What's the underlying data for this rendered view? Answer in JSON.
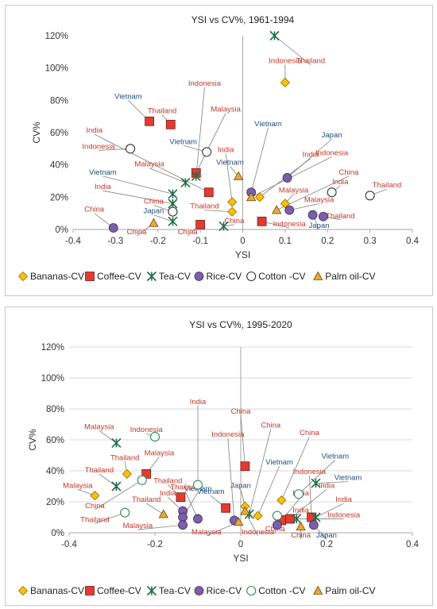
{
  "chart_data": [
    {
      "type": "scatter",
      "title": "YSI vs CV%, 1961-1994",
      "xlabel": "YSI",
      "ylabel": "CV%",
      "xlim": [
        -0.4,
        0.4
      ],
      "ylim": [
        0,
        120
      ],
      "x_ticks": [
        "-0.4",
        "-0.3",
        "-0.2",
        "-0.1",
        "0",
        "0.1",
        "0.2",
        "0.3",
        "0.4"
      ],
      "y_ticks": [
        "0%",
        "20%",
        "40%",
        "60%",
        "80%",
        "100%",
        "120%"
      ],
      "grid": false,
      "legend_position": "bottom",
      "series": [
        {
          "name": "Bananas-CV",
          "marker": "diamond",
          "color": "#ffc000",
          "points": [
            {
              "x": 0.1,
              "y": 91,
              "label": "Indonesia",
              "lx": 0.1,
              "ly": 102
            },
            {
              "x": 0.04,
              "y": 20,
              "label": "India",
              "lx": 0.16,
              "ly": 44
            },
            {
              "x": 0.1,
              "y": 16,
              "label": "Malaysia",
              "lx": 0.12,
              "ly": 22
            },
            {
              "x": -0.025,
              "y": 17,
              "label": "India",
              "lx": -0.04,
              "ly": 47
            },
            {
              "x": -0.025,
              "y": 11,
              "label": "Thailand",
              "lx": -0.09,
              "ly": 12
            }
          ]
        },
        {
          "name": "Coffee-CV",
          "marker": "square",
          "color": "#e03c31",
          "points": [
            {
              "x": -0.22,
              "y": 67,
              "label": "Vietnam",
              "lx": -0.27,
              "ly": 80
            },
            {
              "x": -0.17,
              "y": 65,
              "label": "Thailand",
              "lx": -0.19,
              "ly": 71
            },
            {
              "x": -0.11,
              "y": 35,
              "label": "Malaysia",
              "lx": -0.04,
              "ly": 72
            },
            {
              "x": -0.08,
              "y": 23,
              "label": "India",
              "lx": -0.35,
              "ly": 59
            },
            {
              "x": -0.1,
              "y": 3,
              "label": "China",
              "lx": -0.13,
              "ly": -4
            },
            {
              "x": 0.045,
              "y": 5,
              "label": "Indonesia",
              "lx": 0.11,
              "ly": 1
            }
          ]
        },
        {
          "name": "Tea-CV",
          "marker": "star",
          "color": "#1f6e43",
          "points": [
            {
              "x": 0.075,
              "y": 120,
              "label": "Thailand",
              "lx": 0.16,
              "ly": 102
            },
            {
              "x": -0.11,
              "y": 33,
              "label": "Indonesia",
              "lx": -0.09,
              "ly": 88
            },
            {
              "x": -0.135,
              "y": 29,
              "label": "Malaysia",
              "lx": -0.22,
              "ly": 38
            },
            {
              "x": -0.165,
              "y": 22,
              "label": "Vietnam",
              "lx": -0.33,
              "ly": 33
            },
            {
              "x": -0.165,
              "y": 16,
              "label": "India",
              "lx": -0.33,
              "ly": 24
            },
            {
              "x": -0.165,
              "y": 5,
              "label": "Japan",
              "lx": -0.21,
              "ly": 9
            },
            {
              "x": -0.045,
              "y": 2,
              "label": "China",
              "lx": -0.02,
              "ly": 3
            }
          ]
        },
        {
          "name": "Rice-CV",
          "marker": "circle",
          "color": "#7b5fa8",
          "points": [
            {
              "x": 0.02,
              "y": 23,
              "label": "Vietnam",
              "lx": 0.06,
              "ly": 63
            },
            {
              "x": 0.105,
              "y": 32,
              "label": "Japan",
              "lx": 0.21,
              "ly": 56
            },
            {
              "x": 0.11,
              "y": 12,
              "label": "Malaysia",
              "lx": 0.18,
              "ly": 16
            },
            {
              "x": 0.165,
              "y": 9,
              "label": "Japan",
              "lx": 0.18,
              "ly": 0
            },
            {
              "x": 0.19,
              "y": 8,
              "label": "Thailand",
              "lx": 0.23,
              "ly": 6
            },
            {
              "x": -0.305,
              "y": 1,
              "label": "China",
              "lx": -0.35,
              "ly": 10
            }
          ]
        },
        {
          "name": "Cotton -CV",
          "marker": "ring",
          "color": "#333333",
          "points": [
            {
              "x": -0.265,
              "y": 50,
              "label": "Indonesia",
              "lx": -0.34,
              "ly": 49
            },
            {
              "x": -0.085,
              "y": 48,
              "label": "Vietnam",
              "lx": -0.14,
              "ly": 52
            },
            {
              "x": -0.165,
              "y": 11,
              "label": "China",
              "lx": -0.21,
              "ly": 15
            },
            {
              "x": 0.21,
              "y": 23,
              "label": "India",
              "lx": 0.23,
              "ly": 27
            },
            {
              "x": 0.3,
              "y": 21,
              "label": "Thailand",
              "lx": 0.34,
              "ly": 25
            }
          ]
        },
        {
          "name": "Palm oil-CV",
          "marker": "triangle",
          "color": "#e6a83a",
          "points": [
            {
              "x": -0.01,
              "y": 33,
              "label": "Vietnam",
              "lx": -0.03,
              "ly": 39
            },
            {
              "x": 0.02,
              "y": 20,
              "label": "Indonesia",
              "lx": 0.21,
              "ly": 45
            },
            {
              "x": 0.08,
              "y": 12,
              "label": "China",
              "lx": 0.25,
              "ly": 33
            },
            {
              "x": -0.21,
              "y": 4,
              "label": "China",
              "lx": -0.25,
              "ly": -4
            }
          ]
        }
      ]
    },
    {
      "type": "scatter",
      "title": "YSI vs CV%, 1995-2020",
      "xlabel": "YSI",
      "ylabel": "CV%",
      "xlim": [
        -0.4,
        0.4
      ],
      "ylim": [
        0,
        120
      ],
      "x_ticks": [
        "-0.4",
        "-0.2",
        "0",
        "0.2",
        "0.4"
      ],
      "y_ticks": [
        "0%",
        "20%",
        "40%",
        "60%",
        "80%",
        "100%",
        "120%"
      ],
      "grid": true,
      "legend_position": "bottom",
      "series": [
        {
          "name": "Bananas-CV",
          "marker": "diamond",
          "color": "#ffc000",
          "points": [
            {
              "x": -0.34,
              "y": 24,
              "label": "Malaysia",
              "lx": -0.38,
              "ly": 28
            },
            {
              "x": -0.265,
              "y": 38,
              "label": "Thailand",
              "lx": -0.27,
              "ly": 46
            },
            {
              "x": 0.01,
              "y": 17,
              "label": "Japan",
              "lx": 0.0,
              "ly": 28
            },
            {
              "x": 0.04,
              "y": 11,
              "label": "Vietnam",
              "lx": 0.09,
              "ly": 43
            },
            {
              "x": 0.095,
              "y": 21,
              "label": "China",
              "lx": 0.16,
              "ly": 62
            }
          ]
        },
        {
          "name": "Coffee-CV",
          "marker": "square",
          "color": "#e03c31",
          "points": [
            {
              "x": -0.22,
              "y": 38,
              "label": "Malaysia",
              "lx": -0.19,
              "ly": 49
            },
            {
              "x": -0.14,
              "y": 23,
              "label": "Thailand",
              "lx": -0.17,
              "ly": 31
            },
            {
              "x": -0.035,
              "y": 16,
              "label": "Vietnam",
              "lx": -0.07,
              "ly": 24
            },
            {
              "x": 0.01,
              "y": 43,
              "label": "China",
              "lx": 0.0,
              "ly": 76
            },
            {
              "x": 0.095,
              "y": 8,
              "label": "India",
              "lx": 0.14,
              "ly": 23
            },
            {
              "x": 0.115,
              "y": 9,
              "label": "India",
              "lx": 0.2,
              "ly": 28
            },
            {
              "x": 0.165,
              "y": 10,
              "label": "Indonesia",
              "lx": 0.16,
              "ly": 37
            }
          ]
        },
        {
          "name": "Tea-CV",
          "marker": "star",
          "color": "#1f6e43",
          "points": [
            {
              "x": -0.29,
              "y": 58,
              "label": "Malaysia",
              "lx": -0.33,
              "ly": 66
            },
            {
              "x": -0.29,
              "y": 30,
              "label": "Thailand",
              "lx": -0.33,
              "ly": 38
            },
            {
              "x": 0.02,
              "y": 12,
              "label": "China",
              "lx": 0.07,
              "ly": 67
            },
            {
              "x": 0.13,
              "y": 9,
              "label": "Indonesia",
              "lx": 0.24,
              "ly": 9
            },
            {
              "x": 0.175,
              "y": 10,
              "label": "India",
              "lx": 0.24,
              "ly": 19
            },
            {
              "x": 0.175,
              "y": 32,
              "label": "Vietnam",
              "lx": 0.25,
              "ly": 33
            }
          ]
        },
        {
          "name": "Rice-CV",
          "marker": "circle",
          "color": "#7b5fa8",
          "points": [
            {
              "x": -0.135,
              "y": 14,
              "label": "India",
              "lx": -0.17,
              "ly": 23
            },
            {
              "x": -0.135,
              "y": 10,
              "label": "Vietnam",
              "lx": -0.1,
              "ly": 26
            },
            {
              "x": -0.135,
              "y": 5,
              "label": "Malaysia",
              "lx": -0.24,
              "ly": 2
            },
            {
              "x": -0.1,
              "y": 9,
              "label": "Thailand",
              "lx": -0.13,
              "ly": 27
            },
            {
              "x": -0.015,
              "y": 8,
              "label": "Indonesia",
              "lx": -0.03,
              "ly": 61
            },
            {
              "x": 0.085,
              "y": 5,
              "label": "China",
              "lx": 0.08,
              "ly": 0
            },
            {
              "x": 0.17,
              "y": 5,
              "label": "Japan",
              "lx": 0.2,
              "ly": -4
            }
          ]
        },
        {
          "name": "Cotton -CV",
          "marker": "ring",
          "color": "#2e8b57",
          "points": [
            {
              "x": -0.2,
              "y": 62,
              "label": "Indonesia",
              "lx": -0.22,
              "ly": 64
            },
            {
              "x": -0.23,
              "y": 34,
              "label": "China",
              "lx": -0.34,
              "ly": 15
            },
            {
              "x": -0.27,
              "y": 13,
              "label": "Thailand",
              "lx": -0.34,
              "ly": 6
            },
            {
              "x": -0.1,
              "y": 31,
              "label": "India",
              "lx": -0.1,
              "ly": 82
            },
            {
              "x": 0.135,
              "y": 25,
              "label": "Vietnam",
              "lx": 0.22,
              "ly": 47
            },
            {
              "x": 0.085,
              "y": 11,
              "label": "India",
              "lx": 0.14,
              "ly": 12
            }
          ]
        },
        {
          "name": "Palm oil-CV",
          "marker": "triangle",
          "color": "#e6a83a",
          "points": [
            {
              "x": -0.18,
              "y": 12,
              "label": "Thailand",
              "lx": -0.22,
              "ly": 19
            },
            {
              "x": -0.005,
              "y": 7,
              "label": "Malaysia",
              "lx": -0.08,
              "ly": -2
            },
            {
              "x": 0.01,
              "y": 14,
              "label": "Indonesia",
              "lx": 0.04,
              "ly": -2
            },
            {
              "x": 0.14,
              "y": 4,
              "label": "China",
              "lx": 0.14,
              "ly": -4
            }
          ]
        }
      ]
    }
  ],
  "label_colors": {
    "Indonesia": "#c0392b",
    "Vietnam": "#1f4e79",
    "Thailand": "#c0392b",
    "Malaysia": "#c0392b",
    "India": "#c0392b",
    "China": "#c0392b",
    "Japan": "#1f4e79"
  }
}
